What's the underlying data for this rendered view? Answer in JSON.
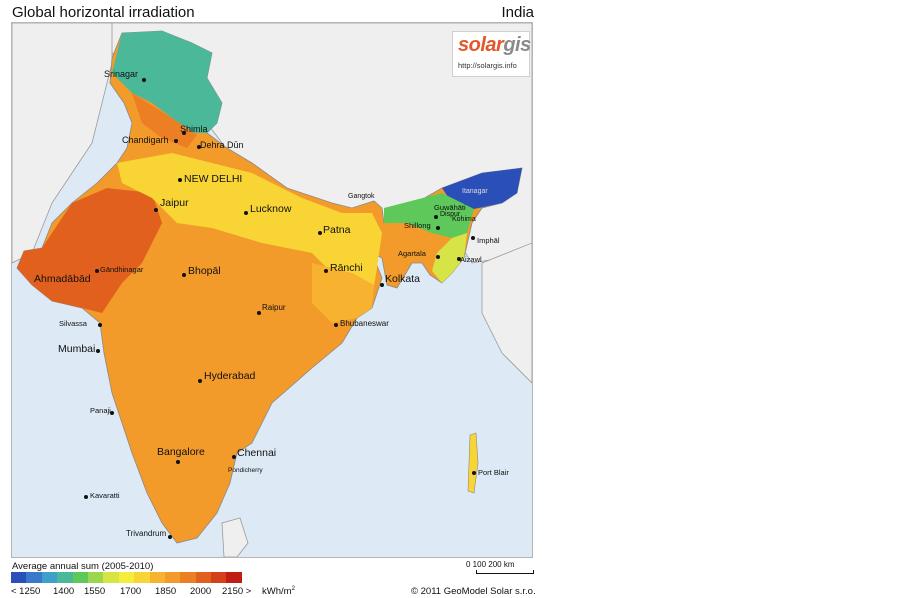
{
  "header": {
    "title": "Global horizontal irradiation",
    "country": "India"
  },
  "logo": {
    "brand_a": "solar",
    "brand_b": "gis",
    "url": "http://solargis.info"
  },
  "colors": {
    "sea": "#dde9f5",
    "land_neighbors": "#efefef",
    "border": "#9a9a9a"
  },
  "cities": [
    {
      "name": "Srinagar",
      "big": false
    },
    {
      "name": "Shimla",
      "big": false
    },
    {
      "name": "Chandigarh",
      "big": false
    },
    {
      "name": "Dehra Dūn",
      "big": false
    },
    {
      "name": "NEW DELHI",
      "big": true
    },
    {
      "name": "Jaipur",
      "big": true
    },
    {
      "name": "Lucknow",
      "big": true
    },
    {
      "name": "Gangtok",
      "big": false
    },
    {
      "name": "Itanagar",
      "big": false
    },
    {
      "name": "Guwāhāti",
      "big": false
    },
    {
      "name": "Dispur",
      "big": false
    },
    {
      "name": "Shillong",
      "big": false
    },
    {
      "name": "Kohima",
      "big": false
    },
    {
      "name": "Patna",
      "big": true
    },
    {
      "name": "Agartala",
      "big": false
    },
    {
      "name": "Imphāl",
      "big": false
    },
    {
      "name": "Gāndhinagar",
      "big": false
    },
    {
      "name": "Ahmadābād",
      "big": true
    },
    {
      "name": "Bhopāl",
      "big": true
    },
    {
      "name": "Rānchi",
      "big": true
    },
    {
      "name": "Aizawl",
      "big": false
    },
    {
      "name": "Kolkata",
      "big": true
    },
    {
      "name": "Raipur",
      "big": false
    },
    {
      "name": "Silvassa",
      "big": false
    },
    {
      "name": "Bhubaneswar",
      "big": false
    },
    {
      "name": "Mumbai",
      "big": true
    },
    {
      "name": "Hyderabad",
      "big": true
    },
    {
      "name": "Panaji",
      "big": false
    },
    {
      "name": "Bangalore",
      "big": true
    },
    {
      "name": "Chennai",
      "big": true
    },
    {
      "name": "Pondicherry",
      "big": false
    },
    {
      "name": "Kavaratti",
      "big": false
    },
    {
      "name": "Port Blair",
      "big": false
    },
    {
      "name": "Trivandrum",
      "big": false
    }
  ],
  "legend": {
    "title": "Average annual sum (2005-2010)",
    "unit": "kWh/m",
    "unit_sup": "2",
    "ticks": [
      "< 1250",
      "1400",
      "1550",
      "1700",
      "1850",
      "2000",
      "2150 >"
    ],
    "colors": [
      "#2b4fb8",
      "#3b78cc",
      "#3e9fc9",
      "#4bb89a",
      "#5ec85a",
      "#9ad64e",
      "#d6e545",
      "#f5ed3c",
      "#f9d435",
      "#f7b230",
      "#f29a2a",
      "#ec7f24",
      "#e2601e",
      "#d44018",
      "#c01e12"
    ]
  },
  "scale": {
    "label": "0   100  200 km"
  },
  "copyright": "© 2011 GeoModel Solar s.r.o."
}
